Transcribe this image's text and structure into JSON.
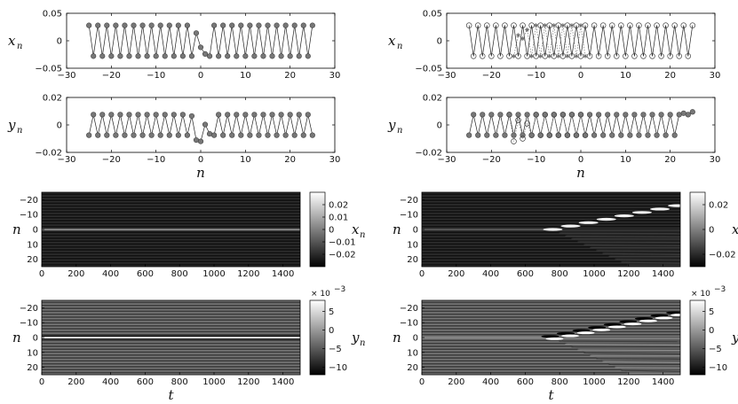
{
  "chart_data": [
    {
      "panel": "top-left-xn",
      "type": "line",
      "ylabel": "x",
      "ylabel_sub": "n",
      "xlim": [
        -30,
        30
      ],
      "ylim": [
        -0.05,
        0.05
      ],
      "xticks": [
        -30,
        -20,
        -10,
        0,
        10,
        20,
        30
      ],
      "yticks": [
        -0.05,
        0,
        0.05
      ],
      "series": [
        {
          "style": "solid",
          "marker": "filled",
          "pattern": {
            "n_start": -25,
            "n_end": 25,
            "amplitude": 0.028,
            "phase": 1
          },
          "overrides": [
            {
              "n": -1,
              "y": 0.014
            },
            {
              "n": 0,
              "y": -0.012
            },
            {
              "n": 1,
              "y": -0.024
            }
          ]
        }
      ]
    },
    {
      "panel": "top-left-yn",
      "type": "line",
      "ylabel": "y",
      "ylabel_sub": "n",
      "xlabel": "n",
      "xlim": [
        -30,
        30
      ],
      "ylim": [
        -0.02,
        0.02
      ],
      "xticks": [
        -30,
        -20,
        -10,
        0,
        10,
        20,
        30
      ],
      "yticks": [
        -0.02,
        0,
        0.02
      ],
      "series": [
        {
          "style": "solid",
          "marker": "filled",
          "pattern": {
            "n_start": -25,
            "n_end": 25,
            "amplitude": 0.0075,
            "phase": -1
          },
          "overrides": [
            {
              "n": -2,
              "y": 0.0065
            },
            {
              "n": -1,
              "y": -0.011
            },
            {
              "n": 0,
              "y": -0.012
            },
            {
              "n": 1,
              "y": 0.0003
            },
            {
              "n": 2,
              "y": -0.0065
            }
          ]
        }
      ]
    },
    {
      "panel": "top-right-xn",
      "type": "line",
      "ylabel": "x",
      "ylabel_sub": "n",
      "xlim": [
        -30,
        30
      ],
      "ylim": [
        -0.05,
        0.05
      ],
      "xticks": [
        -30,
        -20,
        -10,
        0,
        10,
        20,
        30
      ],
      "yticks": [
        -0.05,
        0,
        0.05
      ],
      "series": [
        {
          "style": "solid",
          "marker": "open",
          "pattern": {
            "n_start": -25,
            "n_end": 25,
            "amplitude": 0.028,
            "phase": 1
          },
          "overrides": []
        },
        {
          "style": "dotted",
          "marker": "star",
          "pattern": {
            "n_start": -15,
            "n_end": 1,
            "amplitude": 0.028,
            "phase": -1
          },
          "overrides": [
            {
              "n": -14,
              "y": 0.01
            },
            {
              "n": -13,
              "y": 0.004
            },
            {
              "n": -12,
              "y": 0.02
            }
          ]
        }
      ]
    },
    {
      "panel": "top-right-yn",
      "type": "line",
      "ylabel": "y",
      "ylabel_sub": "n",
      "xlabel": "n",
      "xlim": [
        -30,
        30
      ],
      "ylim": [
        -0.02,
        0.02
      ],
      "xticks": [
        -30,
        -20,
        -10,
        0,
        10,
        20,
        30
      ],
      "yticks": [
        -0.02,
        0,
        0.02
      ],
      "series": [
        {
          "style": "solid",
          "marker": "filled",
          "pattern": {
            "n_start": -25,
            "n_end": 25,
            "amplitude": 0.0075,
            "phase": -1
          },
          "overrides": [
            {
              "n": 23,
              "y": 0.0085
            },
            {
              "n": 25,
              "y": 0.0095
            }
          ]
        },
        {
          "style": "dotted",
          "marker": "open",
          "pattern": {
            "n_start": -16,
            "n_end": 1,
            "amplitude": 0.0075,
            "phase": 1
          },
          "overrides": [
            {
              "n": -15,
              "y": -0.012
            },
            {
              "n": -14,
              "y": 0.0035
            },
            {
              "n": -13,
              "y": -0.01
            },
            {
              "n": -12,
              "y": 0.001
            }
          ]
        }
      ]
    },
    {
      "panel": "bottom-left-xn-heatmap",
      "type": "heatmap",
      "ylabel": "n",
      "xlim": [
        0,
        1500
      ],
      "ylim": [
        -25,
        25
      ],
      "xticks": [
        0,
        200,
        400,
        600,
        800,
        1000,
        1200,
        1400
      ],
      "yticks": [
        -20,
        -10,
        0,
        10,
        20
      ],
      "colorbar": {
        "label": "x",
        "label_sub": "n",
        "range": [
          -0.03,
          0.03
        ],
        "ticks": [
          0.02,
          0.01,
          0,
          -0.01,
          -0.02
        ]
      },
      "features": {
        "stationary_row_n": 0,
        "stationary_value": 0.005
      }
    },
    {
      "panel": "bottom-left-yn-heatmap",
      "type": "heatmap",
      "ylabel": "n",
      "xlabel": "t",
      "xlim": [
        0,
        1500
      ],
      "ylim": [
        -25,
        25
      ],
      "xticks": [
        0,
        200,
        400,
        600,
        800,
        1000,
        1200,
        1400
      ],
      "yticks": [
        -20,
        -10,
        0,
        10,
        20
      ],
      "colorbar": {
        "label": "y",
        "label_sub": "n",
        "exponent": "× 10",
        "exponent_power": "-3",
        "range": [
          -12,
          8
        ],
        "ticks": [
          5,
          0,
          -5,
          -10
        ]
      },
      "features": {
        "stationary_row_n": 0,
        "stationary_value": 8
      }
    },
    {
      "panel": "bottom-right-xn-heatmap",
      "type": "heatmap",
      "ylabel": "n",
      "xlim": [
        0,
        1500
      ],
      "ylim": [
        -25,
        25
      ],
      "xticks": [
        0,
        200,
        400,
        600,
        800,
        1000,
        1200,
        1400
      ],
      "yticks": [
        -20,
        -10,
        0,
        10,
        20
      ],
      "colorbar": {
        "label": "x",
        "label_sub": "n",
        "range": [
          -0.03,
          0.03
        ],
        "ticks": [
          0.02,
          0,
          -0.02
        ]
      },
      "features": {
        "onset_t": 760,
        "track_end_n": -16,
        "pulse_count": 8
      }
    },
    {
      "panel": "bottom-right-yn-heatmap",
      "type": "heatmap",
      "ylabel": "n",
      "xlabel": "t",
      "xlim": [
        0,
        1500
      ],
      "ylim": [
        -25,
        25
      ],
      "xticks": [
        0,
        200,
        400,
        600,
        800,
        1000,
        1200,
        1400
      ],
      "yticks": [
        -20,
        -10,
        0,
        10,
        20
      ],
      "colorbar": {
        "label": "y",
        "label_sub": "n",
        "exponent": "× 10",
        "exponent_power": "-3",
        "range": [
          -12,
          8
        ],
        "ticks": [
          5,
          0,
          -5,
          -10
        ]
      },
      "features": {
        "onset_t": 760,
        "track_end_n": -16,
        "pulse_count": 9
      }
    }
  ]
}
